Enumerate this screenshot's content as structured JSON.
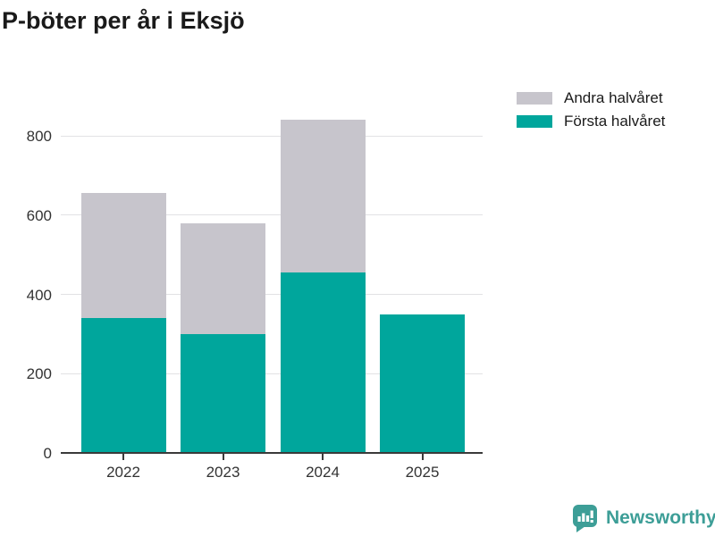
{
  "title": "P-böter per år i Eksjö",
  "legend": [
    {
      "label": "Andra halvåret",
      "color": "#c7c5cc"
    },
    {
      "label": "Första halvåret",
      "color": "#00a69c"
    }
  ],
  "chart_data": {
    "type": "bar",
    "stacked": true,
    "title": "P-böter per år i Eksjö",
    "categories": [
      "2022",
      "2023",
      "2024",
      "2025"
    ],
    "series": [
      {
        "name": "Första halvåret",
        "color": "#00a69c",
        "values": [
          340,
          300,
          455,
          350
        ]
      },
      {
        "name": "Andra halvåret",
        "color": "#c7c5cc",
        "values": [
          315,
          280,
          385,
          0
        ]
      }
    ],
    "yticks": [
      0,
      200,
      400,
      600,
      800
    ],
    "ylim": [
      0,
      850
    ],
    "xlabel": "",
    "ylabel": "",
    "grid": true,
    "legend_position": "top-right"
  },
  "colors": {
    "first_half": "#00a69c",
    "second_half": "#c7c5cc",
    "gridline": "#e2e2e4",
    "axis": "#3a3a3a",
    "tick_label": "#333333",
    "title_text": "#1a1a1a",
    "brand": "#3d9e97"
  },
  "branding": {
    "logo_text": "Newsworthy",
    "logo_icon": "newsworthy-chart-bubble-icon",
    "logo_color": "#3d9e97"
  }
}
